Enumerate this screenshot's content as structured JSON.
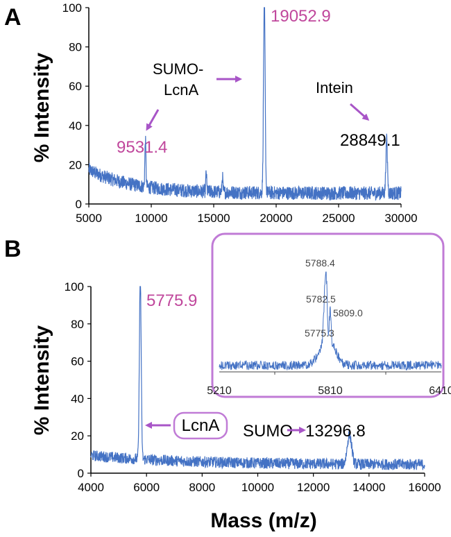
{
  "figure": {
    "xlabel": "Mass (m/z)"
  },
  "chart_data": [
    {
      "panel": "A",
      "type": "line",
      "ylabel": "% Intensity",
      "xlim": [
        5000,
        30000
      ],
      "ylim": [
        0,
        100
      ],
      "xticks": [
        5000,
        10000,
        15000,
        20000,
        25000,
        30000
      ],
      "yticks": [
        0,
        20,
        40,
        60,
        80,
        100
      ],
      "color": "#4472C4",
      "peaks": [
        {
          "mass": 9531.4,
          "intensity": 24,
          "width": 60
        },
        {
          "mass": 19052.9,
          "intensity": 100,
          "width": 90
        },
        {
          "mass": 28849.1,
          "intensity": 27,
          "width": 90
        },
        {
          "mass": 14400,
          "intensity": 10,
          "width": 50
        },
        {
          "mass": 15700,
          "intensity": 8,
          "width": 50
        }
      ],
      "annotations": [
        {
          "text": "9531.4",
          "color": "#C0479C"
        },
        {
          "text": "19052.9",
          "color": "#C0479C"
        },
        {
          "text": "SUMO-",
          "color": "#000000"
        },
        {
          "text": "LcnA",
          "color": "#000000"
        },
        {
          "text": "Intein",
          "color": "#000000"
        },
        {
          "text": "28849.1",
          "color": "#000000"
        }
      ]
    },
    {
      "panel": "B",
      "type": "line",
      "ylabel": "% Intensity",
      "xlim": [
        4000,
        16000
      ],
      "ylim": [
        0,
        100
      ],
      "xticks": [
        4000,
        6000,
        8000,
        10000,
        12000,
        14000,
        16000
      ],
      "yticks": [
        0,
        20,
        40,
        60,
        80,
        100
      ],
      "color": "#4472C4",
      "peaks": [
        {
          "mass": 5775.9,
          "intensity": 100,
          "width": 45
        },
        {
          "mass": 13296.8,
          "intensity": 16,
          "width": 110
        }
      ],
      "annotations": [
        {
          "text": "5775.9",
          "color": "#C0479C"
        },
        {
          "text": "LcnA",
          "color": "#000000"
        },
        {
          "text": "SUMO",
          "color": "#000000"
        },
        {
          "text": "13296.8",
          "color": "#000000"
        }
      ],
      "inset": {
        "type": "line",
        "xlim": [
          5210,
          6410
        ],
        "xticks": [
          5210,
          5810,
          6410
        ],
        "peaks": [
          {
            "mass": 5775.3,
            "intensity": 45
          },
          {
            "mass": 5782.5,
            "intensity": 60
          },
          {
            "mass": 5788.4,
            "intensity": 100
          },
          {
            "mass": 5809.0,
            "intensity": 55
          }
        ],
        "labels": [
          "5788.4",
          "5782.5",
          "5809.0",
          "5775.3"
        ]
      }
    }
  ],
  "colors": {
    "trace": "#4472C4",
    "accent": "#C0479C",
    "arrow": "#A855C7",
    "inset_border": "#C07BD6"
  }
}
